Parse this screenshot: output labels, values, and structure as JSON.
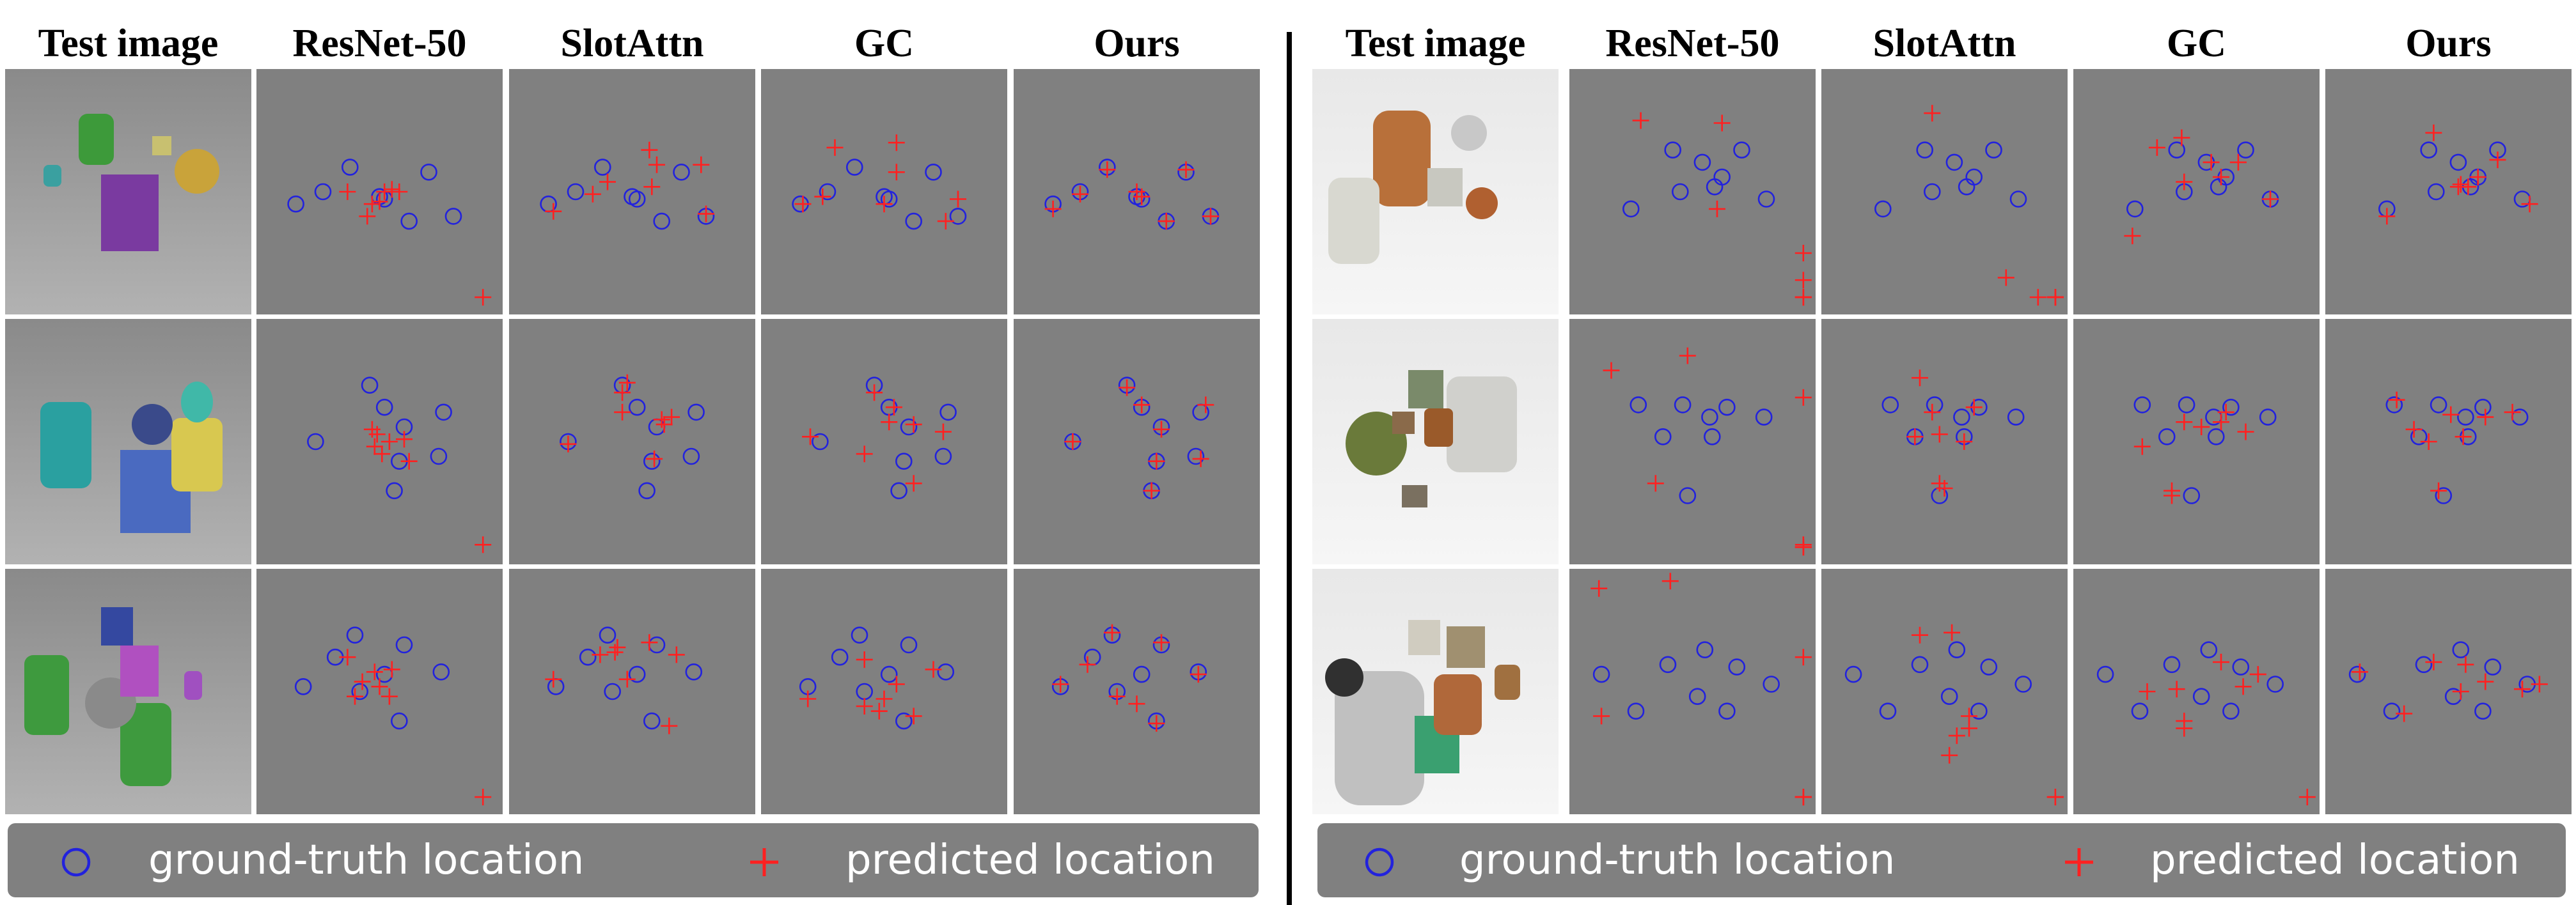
{
  "headers": [
    "Test image",
    "ResNet-50",
    "SlotAttn",
    "GC",
    "Ours"
  ],
  "legend": {
    "gt_label": "ground-truth location",
    "pred_label": "predicted location"
  },
  "colors": {
    "gt": "#2222dd",
    "pred": "#ff2020",
    "cell_bg": "#808080",
    "legend_bg": "#808080"
  },
  "scenes": {
    "left": [
      {
        "gt": [
          [
            0.16,
            0.55
          ],
          [
            0.27,
            0.5
          ],
          [
            0.38,
            0.4
          ],
          [
            0.52,
            0.53
          ],
          [
            0.5,
            0.52
          ],
          [
            0.62,
            0.62
          ],
          [
            0.7,
            0.42
          ],
          [
            0.8,
            0.6
          ]
        ],
        "pred": {
          "ResNet-50": [
            [
              0.37,
              0.5
            ],
            [
              0.47,
              0.55
            ],
            [
              0.52,
              0.5
            ],
            [
              0.55,
              0.49
            ],
            [
              0.5,
              0.54
            ],
            [
              0.45,
              0.6
            ],
            [
              0.58,
              0.5
            ],
            [
              0.92,
              0.93
            ]
          ],
          "SlotAttn": [
            [
              0.18,
              0.58
            ],
            [
              0.34,
              0.51
            ],
            [
              0.4,
              0.46
            ],
            [
              0.58,
              0.48
            ],
            [
              0.57,
              0.33
            ],
            [
              0.6,
              0.39
            ],
            [
              0.78,
              0.39
            ],
            [
              0.8,
              0.59
            ]
          ],
          "GC": [
            [
              0.17,
              0.55
            ],
            [
              0.25,
              0.52
            ],
            [
              0.3,
              0.32
            ],
            [
              0.55,
              0.3
            ],
            [
              0.55,
              0.42
            ],
            [
              0.5,
              0.55
            ],
            [
              0.8,
              0.53
            ],
            [
              0.75,
              0.62
            ]
          ],
          "Ours": [
            [
              0.16,
              0.57
            ],
            [
              0.27,
              0.51
            ],
            [
              0.38,
              0.41
            ],
            [
              0.52,
              0.52
            ],
            [
              0.5,
              0.5
            ],
            [
              0.62,
              0.62
            ],
            [
              0.7,
              0.41
            ],
            [
              0.8,
              0.6
            ]
          ]
        }
      },
      {
        "gt": [
          [
            0.24,
            0.5
          ],
          [
            0.46,
            0.27
          ],
          [
            0.52,
            0.36
          ],
          [
            0.6,
            0.44
          ],
          [
            0.58,
            0.58
          ],
          [
            0.56,
            0.7
          ],
          [
            0.76,
            0.38
          ],
          [
            0.74,
            0.56
          ]
        ],
        "pred": {
          "ResNet-50": [
            [
              0.47,
              0.45
            ],
            [
              0.48,
              0.52
            ],
            [
              0.51,
              0.55
            ],
            [
              0.54,
              0.5
            ],
            [
              0.49,
              0.47
            ],
            [
              0.6,
              0.49
            ],
            [
              0.62,
              0.58
            ],
            [
              0.92,
              0.92
            ]
          ],
          "SlotAttn": [
            [
              0.24,
              0.51
            ],
            [
              0.46,
              0.3
            ],
            [
              0.48,
              0.26
            ],
            [
              0.46,
              0.38
            ],
            [
              0.62,
              0.41
            ],
            [
              0.59,
              0.57
            ],
            [
              0.66,
              0.4
            ],
            [
              0.63,
              0.43
            ]
          ],
          "GC": [
            [
              0.2,
              0.48
            ],
            [
              0.46,
              0.3
            ],
            [
              0.54,
              0.36
            ],
            [
              0.52,
              0.42
            ],
            [
              0.62,
              0.43
            ],
            [
              0.42,
              0.55
            ],
            [
              0.74,
              0.46
            ],
            [
              0.62,
              0.67
            ]
          ],
          "Ours": [
            [
              0.24,
              0.5
            ],
            [
              0.46,
              0.28
            ],
            [
              0.52,
              0.35
            ],
            [
              0.6,
              0.45
            ],
            [
              0.58,
              0.58
            ],
            [
              0.56,
              0.7
            ],
            [
              0.78,
              0.35
            ],
            [
              0.76,
              0.57
            ]
          ]
        }
      },
      {
        "gt": [
          [
            0.19,
            0.48
          ],
          [
            0.32,
            0.36
          ],
          [
            0.4,
            0.27
          ],
          [
            0.42,
            0.5
          ],
          [
            0.52,
            0.43
          ],
          [
            0.6,
            0.31
          ],
          [
            0.75,
            0.42
          ],
          [
            0.58,
            0.62
          ]
        ],
        "pred": {
          "ResNet-50": [
            [
              0.37,
              0.36
            ],
            [
              0.43,
              0.46
            ],
            [
              0.48,
              0.42
            ],
            [
              0.54,
              0.52
            ],
            [
              0.5,
              0.48
            ],
            [
              0.4,
              0.52
            ],
            [
              0.55,
              0.41
            ],
            [
              0.92,
              0.93
            ]
          ],
          "SlotAttn": [
            [
              0.18,
              0.45
            ],
            [
              0.37,
              0.35
            ],
            [
              0.43,
              0.34
            ],
            [
              0.44,
              0.32
            ],
            [
              0.57,
              0.3
            ],
            [
              0.68,
              0.35
            ],
            [
              0.48,
              0.45
            ],
            [
              0.65,
              0.64
            ]
          ],
          "GC": [
            [
              0.19,
              0.53
            ],
            [
              0.42,
              0.37
            ],
            [
              0.42,
              0.56
            ],
            [
              0.48,
              0.58
            ],
            [
              0.5,
              0.53
            ],
            [
              0.55,
              0.47
            ],
            [
              0.7,
              0.41
            ],
            [
              0.62,
              0.6
            ]
          ],
          "Ours": [
            [
              0.19,
              0.47
            ],
            [
              0.3,
              0.39
            ],
            [
              0.4,
              0.26
            ],
            [
              0.42,
              0.52
            ],
            [
              0.5,
              0.55
            ],
            [
              0.6,
              0.3
            ],
            [
              0.75,
              0.43
            ],
            [
              0.58,
              0.63
            ]
          ]
        }
      }
    ],
    "right": [
      {
        "gt": [
          [
            0.25,
            0.57
          ],
          [
            0.42,
            0.33
          ],
          [
            0.54,
            0.38
          ],
          [
            0.62,
            0.44
          ],
          [
            0.7,
            0.33
          ],
          [
            0.8,
            0.53
          ],
          [
            0.45,
            0.5
          ],
          [
            0.59,
            0.48
          ]
        ],
        "pred": {
          "ResNet-50": [
            [
              0.29,
              0.21
            ],
            [
              0.62,
              0.22
            ],
            [
              0.6,
              0.57
            ],
            [
              0.95,
              0.75
            ],
            [
              0.95,
              0.86
            ],
            [
              0.95,
              0.93
            ],
            [
              0.95,
              0.93
            ],
            [
              0.95,
              0.93
            ]
          ],
          "SlotAttn": [
            [
              0.45,
              0.18
            ],
            [
              0.75,
              0.85
            ],
            [
              0.88,
              0.93
            ],
            [
              0.95,
              0.93
            ],
            [
              0.95,
              0.93
            ],
            [
              0.95,
              0.93
            ],
            [
              0.95,
              0.93
            ],
            [
              0.95,
              0.93
            ]
          ],
          "GC": [
            [
              0.24,
              0.68
            ],
            [
              0.34,
              0.32
            ],
            [
              0.44,
              0.28
            ],
            [
              0.45,
              0.46
            ],
            [
              0.67,
              0.38
            ],
            [
              0.8,
              0.53
            ],
            [
              0.56,
              0.38
            ],
            [
              0.6,
              0.44
            ]
          ],
          "Ours": [
            [
              0.25,
              0.6
            ],
            [
              0.44,
              0.26
            ],
            [
              0.55,
              0.47
            ],
            [
              0.62,
              0.44
            ],
            [
              0.7,
              0.37
            ],
            [
              0.83,
              0.55
            ],
            [
              0.54,
              0.48
            ],
            [
              0.58,
              0.48
            ]
          ]
        }
      },
      {
        "gt": [
          [
            0.28,
            0.35
          ],
          [
            0.46,
            0.35
          ],
          [
            0.58,
            0.48
          ],
          [
            0.64,
            0.36
          ],
          [
            0.79,
            0.4
          ],
          [
            0.57,
            0.4
          ],
          [
            0.38,
            0.48
          ],
          [
            0.48,
            0.72
          ]
        ],
        "pred": {
          "ResNet-50": [
            [
              0.17,
              0.21
            ],
            [
              0.48,
              0.15
            ],
            [
              0.35,
              0.67
            ],
            [
              0.95,
              0.32
            ],
            [
              0.95,
              0.92
            ],
            [
              0.95,
              0.93
            ],
            [
              0.95,
              0.93
            ],
            [
              0.95,
              0.93
            ]
          ],
          "SlotAttn": [
            [
              0.4,
              0.24
            ],
            [
              0.45,
              0.38
            ],
            [
              0.62,
              0.36
            ],
            [
              0.38,
              0.48
            ],
            [
              0.48,
              0.47
            ],
            [
              0.5,
              0.69
            ],
            [
              0.48,
              0.67
            ],
            [
              0.58,
              0.5
            ]
          ],
          "GC": [
            [
              0.28,
              0.52
            ],
            [
              0.45,
              0.42
            ],
            [
              0.52,
              0.44
            ],
            [
              0.62,
              0.38
            ],
            [
              0.7,
              0.46
            ],
            [
              0.4,
              0.7
            ],
            [
              0.4,
              0.72
            ],
            [
              0.6,
              0.42
            ]
          ],
          "Ours": [
            [
              0.29,
              0.33
            ],
            [
              0.36,
              0.45
            ],
            [
              0.51,
              0.39
            ],
            [
              0.46,
              0.7
            ],
            [
              0.65,
              0.4
            ],
            [
              0.76,
              0.38
            ],
            [
              0.42,
              0.5
            ],
            [
              0.56,
              0.48
            ]
          ]
        }
      },
      {
        "gt": [
          [
            0.13,
            0.43
          ],
          [
            0.27,
            0.58
          ],
          [
            0.4,
            0.39
          ],
          [
            0.52,
            0.52
          ],
          [
            0.55,
            0.33
          ],
          [
            0.68,
            0.4
          ],
          [
            0.64,
            0.58
          ],
          [
            0.82,
            0.47
          ]
        ],
        "pred": {
          "ResNet-50": [
            [
              0.12,
              0.08
            ],
            [
              0.41,
              0.05
            ],
            [
              0.13,
              0.6
            ],
            [
              0.95,
              0.36
            ],
            [
              0.95,
              0.93
            ],
            [
              0.95,
              0.93
            ],
            [
              0.95,
              0.93
            ],
            [
              0.95,
              0.93
            ]
          ],
          "SlotAttn": [
            [
              0.4,
              0.27
            ],
            [
              0.53,
              0.26
            ],
            [
              0.6,
              0.6
            ],
            [
              0.55,
              0.68
            ],
            [
              0.6,
              0.65
            ],
            [
              0.52,
              0.76
            ],
            [
              0.95,
              0.93
            ],
            [
              0.95,
              0.93
            ]
          ],
          "GC": [
            [
              0.3,
              0.5
            ],
            [
              0.42,
              0.49
            ],
            [
              0.45,
              0.62
            ],
            [
              0.45,
              0.65
            ],
            [
              0.6,
              0.38
            ],
            [
              0.75,
              0.43
            ],
            [
              0.69,
              0.48
            ],
            [
              0.95,
              0.93
            ]
          ],
          "Ours": [
            [
              0.14,
              0.42
            ],
            [
              0.32,
              0.59
            ],
            [
              0.44,
              0.38
            ],
            [
              0.57,
              0.39
            ],
            [
              0.55,
              0.5
            ],
            [
              0.65,
              0.46
            ],
            [
              0.8,
              0.49
            ],
            [
              0.87,
              0.47
            ]
          ]
        }
      }
    ]
  }
}
